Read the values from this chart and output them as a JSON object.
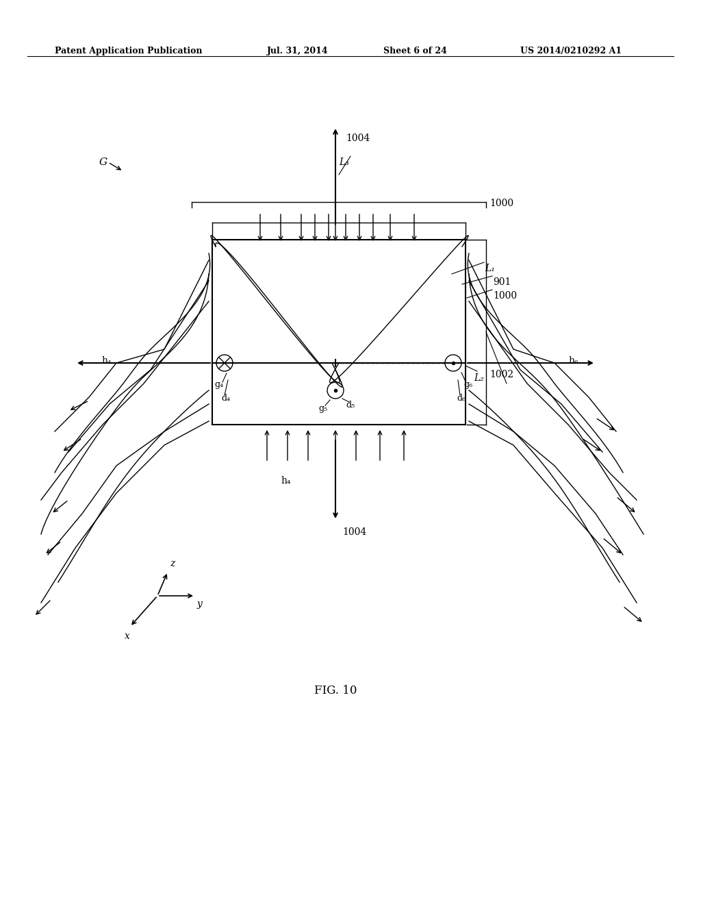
{
  "bg_color": "#ffffff",
  "header_text": "Patent Application Publication",
  "header_date": "Jul. 31, 2014",
  "header_sheet": "Sheet 6 of 24",
  "header_patent": "US 2014/0210292 A1",
  "fig_label": "FIG. 10",
  "title": "G",
  "label_1004_top": "1004",
  "label_L3": "L₃",
  "label_1000_top": "1000",
  "label_L1": "L₁",
  "label_901": "901",
  "label_1000_right": "1000",
  "label_h4_left": "h₄",
  "label_g4": "g₄",
  "label_d4": "d₄",
  "label_h6": "h₆",
  "label_g6": "g₆",
  "label_d6": "d₆",
  "label_L2": "L₂",
  "label_g5": "g₅",
  "label_d5": "d₅",
  "label_h4_bottom": "h₄",
  "label_1004_bottom": "1004",
  "label_1002": "1002"
}
